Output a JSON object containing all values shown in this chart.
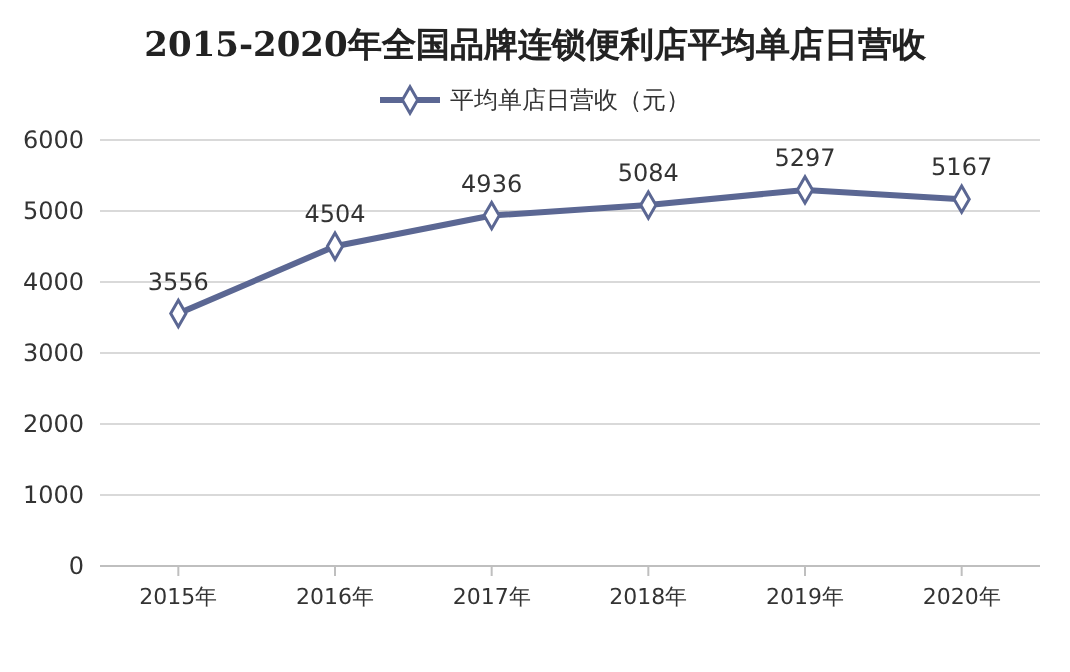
{
  "chart_data": {
    "type": "line",
    "title": "2015-2020年全国品牌连锁便利店平均单店日营收",
    "categories": [
      "2015年",
      "2016年",
      "2017年",
      "2018年",
      "2019年",
      "2020年"
    ],
    "series": [
      {
        "name": "平均单店日营收（元）",
        "color": "#5b6793",
        "values": [
          3556,
          4504,
          4936,
          5084,
          5297,
          5167
        ]
      }
    ],
    "ylim": [
      0,
      6000
    ],
    "yticks": [
      0,
      1000,
      2000,
      3000,
      4000,
      5000,
      6000
    ],
    "grid": "y",
    "legend": "top",
    "marker": "diamond",
    "line_style": "solid",
    "data_labels": true
  }
}
